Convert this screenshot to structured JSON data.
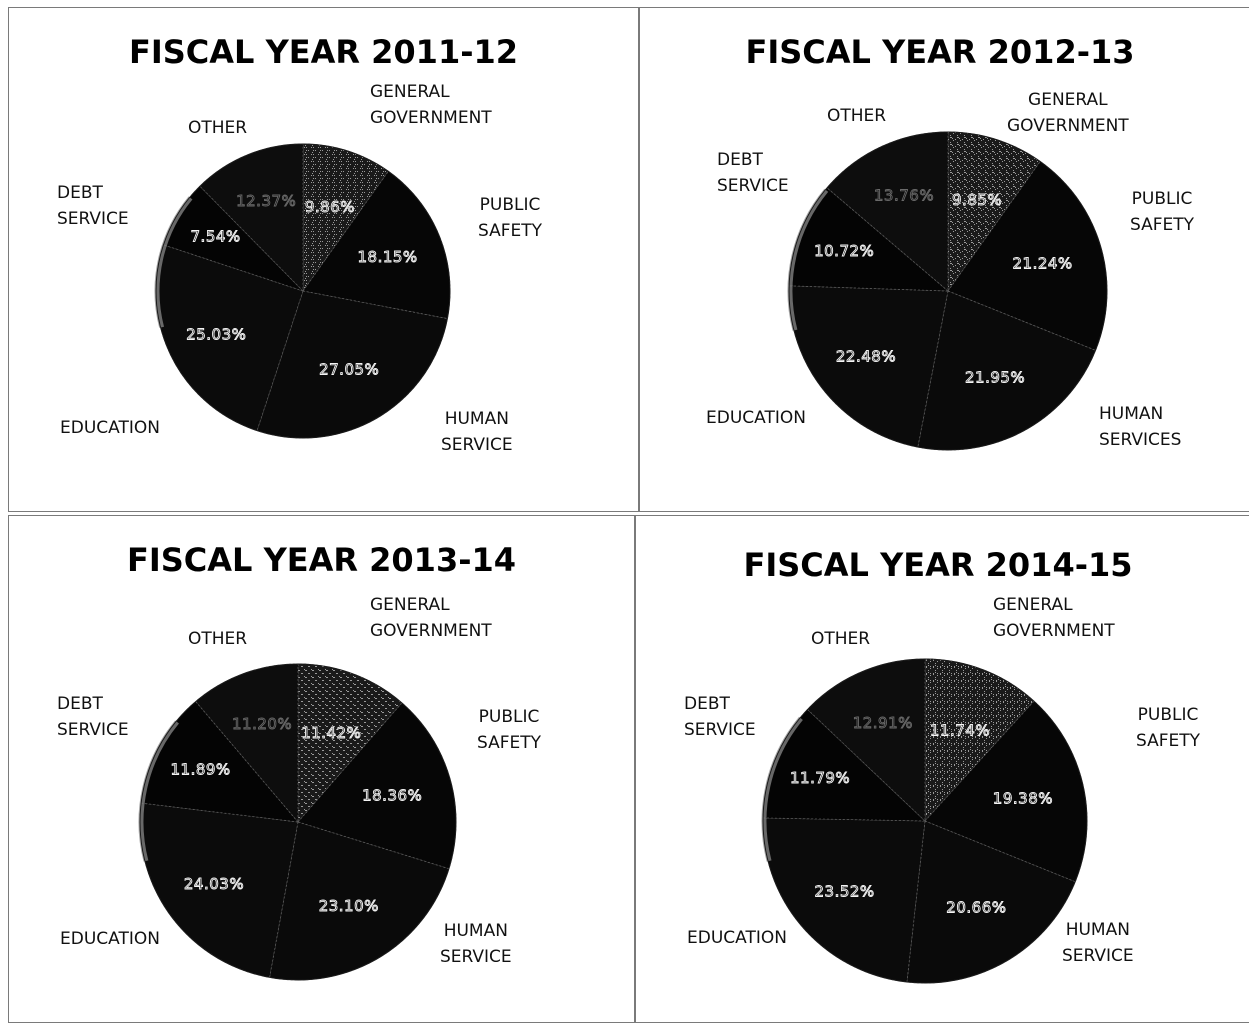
{
  "chart_data": [
    {
      "type": "pie",
      "title": "FISCAL YEAR 2011-12",
      "labels": [
        "GENERAL\nGOVERNMENT",
        "PUBLIC\nSAFETY",
        "HUMAN\nSERVICE",
        "EDUCATION",
        "DEBT\nSERVICE",
        "OTHER"
      ],
      "values": [
        9.86,
        18.15,
        27.05,
        25.03,
        7.54,
        12.37
      ],
      "value_labels": [
        "9.86%",
        "18.15%",
        "27.05%",
        "25.03%",
        "7.54%",
        "12.37%"
      ]
    },
    {
      "type": "pie",
      "title": "FISCAL YEAR 2012-13",
      "labels": [
        "GENERAL\nGOVERNMENT",
        "PUBLIC\nSAFETY",
        "HUMAN\nSERVICES",
        "EDUCATION",
        "DEBT\nSERVICE",
        "OTHER"
      ],
      "values": [
        9.85,
        21.24,
        21.95,
        22.48,
        10.72,
        13.76
      ],
      "value_labels": [
        "9.85%",
        "21.24%",
        "21.95%",
        "22.48%",
        "10.72%",
        "13.76%"
      ]
    },
    {
      "type": "pie",
      "title": "FISCAL YEAR 2013-14",
      "labels": [
        "GENERAL\nGOVERNMENT",
        "PUBLIC\nSAFETY",
        "HUMAN\nSERVICE",
        "EDUCATION",
        "DEBT\nSERVICE",
        "OTHER"
      ],
      "values": [
        11.42,
        18.36,
        23.1,
        24.03,
        11.89,
        11.2
      ],
      "value_labels": [
        "11.42%",
        "18.36%",
        "23.10%",
        "24.03%",
        "11.89%",
        "11.20%"
      ]
    },
    {
      "type": "pie",
      "title": "FISCAL YEAR 2014-15",
      "labels": [
        "GENERAL\nGOVERNMENT",
        "PUBLIC\nSAFETY",
        "HUMAN\nSERVICE",
        "EDUCATION",
        "DEBT\nSERVICE",
        "OTHER"
      ],
      "values": [
        11.74,
        19.38,
        20.66,
        23.52,
        11.79,
        12.91
      ],
      "value_labels": [
        "11.74%",
        "19.38%",
        "20.66%",
        "23.52%",
        "11.79%",
        "12.91%"
      ]
    }
  ],
  "colors": {
    "general_government": "#3a3a3a",
    "public_safety": "#060606",
    "human_services": "#0a0a0a",
    "education": "#0b0b0b",
    "debt_service": "#040404",
    "other": "#0d0d0d",
    "edge_highlight": "#8a8a8a"
  }
}
